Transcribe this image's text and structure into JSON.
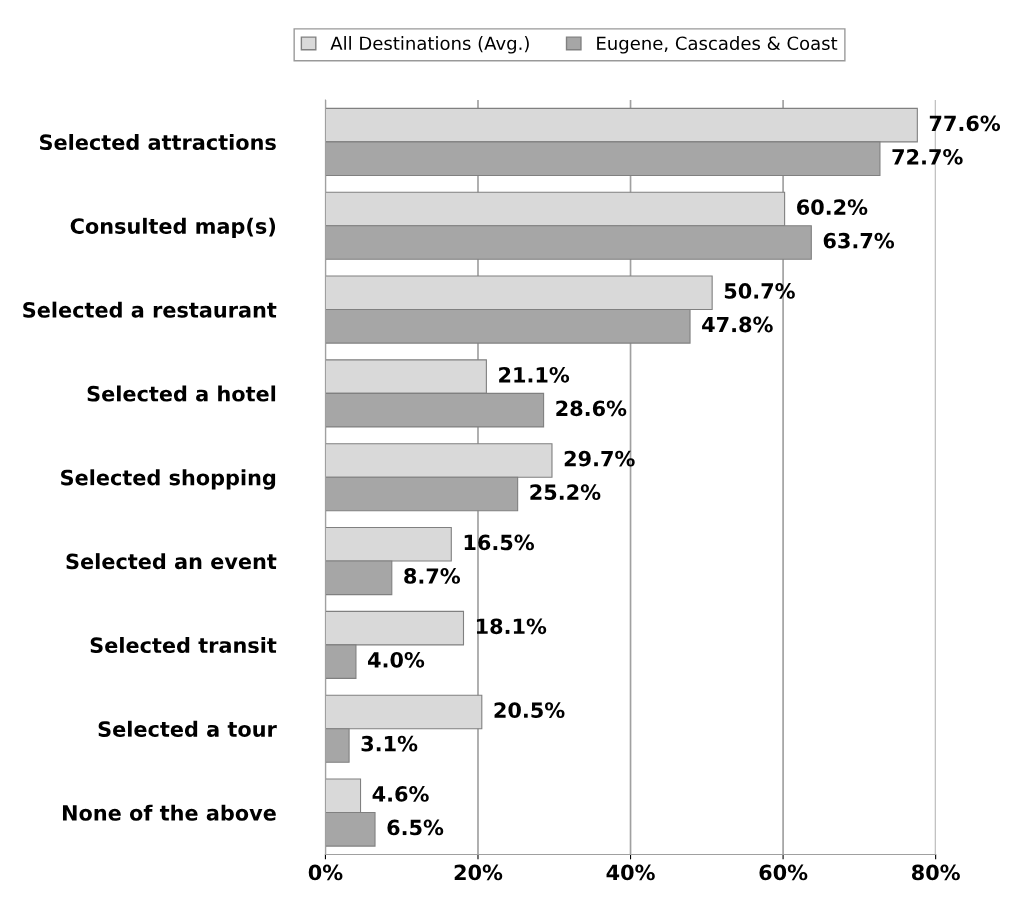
{
  "chart_data": {
    "type": "bar",
    "orientation": "horizontal",
    "categories": [
      "Selected attractions",
      "Consulted map(s)",
      "Selected a restaurant",
      "Selected a hotel",
      "Selected shopping",
      "Selected an event",
      "Selected transit",
      "Selected a tour",
      "None of the above"
    ],
    "series": [
      {
        "name": "All Destinations (Avg.)",
        "color": "#d9d9d9",
        "values": [
          77.6,
          60.2,
          50.7,
          21.1,
          29.7,
          16.5,
          18.1,
          20.5,
          4.6
        ],
        "value_labels": [
          "77.6%",
          "60.2%",
          "50.7%",
          "21.1%",
          "29.7%",
          "16.5%",
          "18.1%",
          "20.5%",
          "4.6%"
        ]
      },
      {
        "name": "Eugene, Cascades & Coast",
        "color": "#a6a6a6",
        "values": [
          72.7,
          63.7,
          47.8,
          28.6,
          25.2,
          8.7,
          4.0,
          3.1,
          6.5
        ],
        "value_labels": [
          "72.7%",
          "63.7%",
          "47.8%",
          "28.6%",
          "25.2%",
          "8.7%",
          "4.0%",
          "3.1%",
          "6.5%"
        ]
      }
    ],
    "xlim": [
      0,
      80
    ],
    "xticks": [
      {
        "value": 0,
        "label": "0%"
      },
      {
        "value": 20,
        "label": "20%"
      },
      {
        "value": 40,
        "label": "40%"
      },
      {
        "value": 60,
        "label": "60%"
      },
      {
        "value": 80,
        "label": "80%"
      }
    ],
    "grid": "x",
    "legend": "top"
  }
}
